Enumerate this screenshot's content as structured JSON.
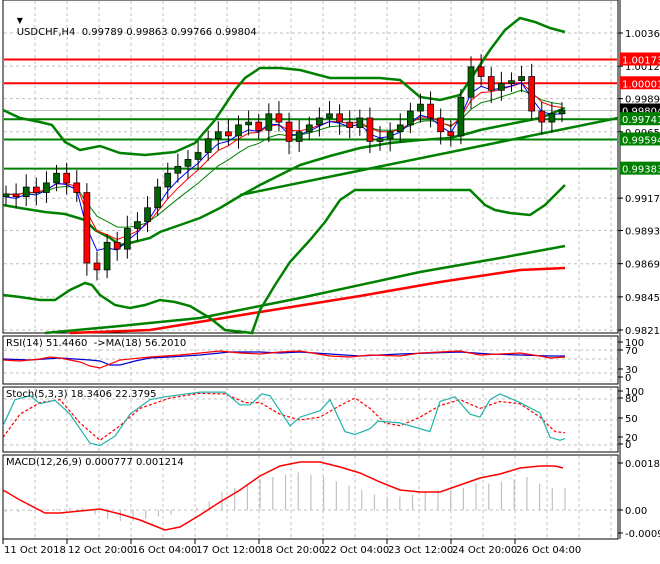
{
  "header": {
    "symbol": "USDCHF,H4",
    "open": "0.99789",
    "high": "0.99863",
    "low": "0.99766",
    "close": "0.99804",
    "title": "USDCHF,H4  0.99789 0.99863 0.99766 0.99804"
  },
  "colors": {
    "background": "#ffffff",
    "grid": "#c0c0c0",
    "bull_candle": "#006400",
    "bear_candle": "#ff0000",
    "resistance_line": "#ff0000",
    "support_line": "#008000",
    "bollinger": "#008000",
    "ma_fast": "#0000ff",
    "ma_mid": "#ff0000",
    "ma_slow": "#008000",
    "rsi_line": "#ff0000",
    "rsi_ma": "#0000cc",
    "stoch_main": "#20b2aa",
    "stoch_signal": "#ff0000",
    "macd_hist": "#c0c0c0",
    "macd_signal": "#ff0000"
  },
  "price_axis": {
    "ticks": [
      "1.00365",
      "1.00125",
      "0.99890",
      "0.99650",
      "0.99170",
      "0.98935",
      "0.98695",
      "0.98455",
      "0.98215"
    ],
    "labels": [
      {
        "value": "1.00173",
        "color": "#ff0000",
        "kind": "resistance"
      },
      {
        "value": "1.00001",
        "color": "#ff0000",
        "kind": "resistance"
      },
      {
        "value": "0.99804",
        "color": "#000000",
        "kind": "current-price"
      },
      {
        "value": "0.99741",
        "color": "#008000",
        "kind": "support"
      },
      {
        "value": "0.99594",
        "color": "#008000",
        "kind": "support"
      },
      {
        "value": "0.99383",
        "color": "#008000",
        "kind": "support"
      }
    ]
  },
  "indicators": {
    "rsi": {
      "title": "RSI(14) 51.4460  ->MA(18) 56.2010",
      "scale": [
        "100",
        "70",
        "30",
        "0"
      ]
    },
    "stoch": {
      "title": "Stoch(5,3,3) 18.3406 22.3795",
      "scale": [
        "100",
        "80",
        "50",
        "20",
        "0"
      ]
    },
    "macd": {
      "title": "MACD(12,26,9) 0.000777 0.001214",
      "scale": [
        "0.001813",
        "0.00",
        "-0.000908"
      ]
    }
  },
  "time_axis": {
    "labels": [
      "11 Oct 2018",
      "12 Oct 20:00",
      "16 Oct 04:00",
      "17 Oct 12:00",
      "18 Oct 20:00",
      "22 Oct 04:00",
      "23 Oct 12:00",
      "24 Oct 20:00",
      "26 Oct 04:00"
    ]
  },
  "chart_data": [
    {
      "type": "candlestick",
      "title": "USDCHF,H4",
      "ohlc_last": {
        "open": 0.99789,
        "high": 0.99863,
        "low": 0.99766,
        "close": 0.99804
      },
      "ylim": [
        0.98215,
        1.00365
      ],
      "y_ticks": [
        1.00365,
        1.00125,
        0.9989,
        0.9965,
        0.9917,
        0.98935,
        0.98695,
        0.98455,
        0.98215
      ],
      "horizontal_lines": [
        {
          "value": 1.00173,
          "color": "red",
          "label": "resistance"
        },
        {
          "value": 1.00001,
          "color": "red",
          "label": "resistance"
        },
        {
          "value": 0.99741,
          "color": "green",
          "label": "support"
        },
        {
          "value": 0.99594,
          "color": "green",
          "label": "support"
        },
        {
          "value": 0.99383,
          "color": "green",
          "label": "support"
        }
      ],
      "trendline": {
        "from": {
          "x": "17 Oct 12:00",
          "y": 0.9932
        },
        "to": {
          "x": "26 Oct 08:00",
          "y": 0.9974
        }
      },
      "overlays": [
        "Bollinger Bands",
        "Moving Averages (blue/red/green)",
        "MA long (green)",
        "MA long (red)"
      ],
      "x_labels": [
        "11 Oct 2018",
        "12 Oct 20:00",
        "16 Oct 04:00",
        "17 Oct 12:00",
        "18 Oct 20:00",
        "22 Oct 04:00",
        "23 Oct 12:00",
        "24 Oct 20:00",
        "26 Oct 04:00"
      ],
      "close_series_approx": [
        0.992,
        0.9918,
        0.9925,
        0.9921,
        0.9928,
        0.9935,
        0.9928,
        0.9921,
        0.987,
        0.9865,
        0.9885,
        0.988,
        0.9895,
        0.99,
        0.991,
        0.9925,
        0.9935,
        0.994,
        0.9945,
        0.995,
        0.996,
        0.9965,
        0.9962,
        0.997,
        0.9972,
        0.9966,
        0.9978,
        0.9972,
        0.9958,
        0.9965,
        0.997,
        0.9975,
        0.9978,
        0.9972,
        0.9968,
        0.9975,
        0.9958,
        0.996,
        0.9965,
        0.997,
        0.998,
        0.9985,
        0.9975,
        0.9965,
        0.9962,
        0.999,
        1.0012,
        1.0005,
        0.9995,
        1.0,
        1.0002,
        1.0005,
        0.998,
        0.9972,
        0.9978,
        0.99804
      ]
    },
    {
      "type": "line",
      "title": "RSI(14) 51.4460 ->MA(18) 56.2010",
      "ylim": [
        0,
        100
      ],
      "y_ticks": [
        100,
        70,
        30,
        0
      ],
      "series": [
        {
          "name": "RSI(14)",
          "last": 51.446
        },
        {
          "name": "MA(18)",
          "last": 56.201
        }
      ]
    },
    {
      "type": "line",
      "title": "Stoch(5,3,3) 18.3406 22.3795",
      "ylim": [
        0,
        100
      ],
      "y_ticks": [
        100,
        80,
        50,
        20,
        0
      ],
      "series": [
        {
          "name": "Main",
          "last": 18.3406
        },
        {
          "name": "Signal",
          "last": 22.3795
        }
      ]
    },
    {
      "type": "bar+line",
      "title": "MACD(12,26,9) 0.000777 0.001214",
      "ylim": [
        -0.000908,
        0.001813
      ],
      "y_ticks": [
        0.001813,
        0.0,
        -0.000908
      ],
      "series": [
        {
          "name": "MACD histogram",
          "last": 0.000777
        },
        {
          "name": "Signal",
          "last": 0.001214
        }
      ]
    }
  ]
}
